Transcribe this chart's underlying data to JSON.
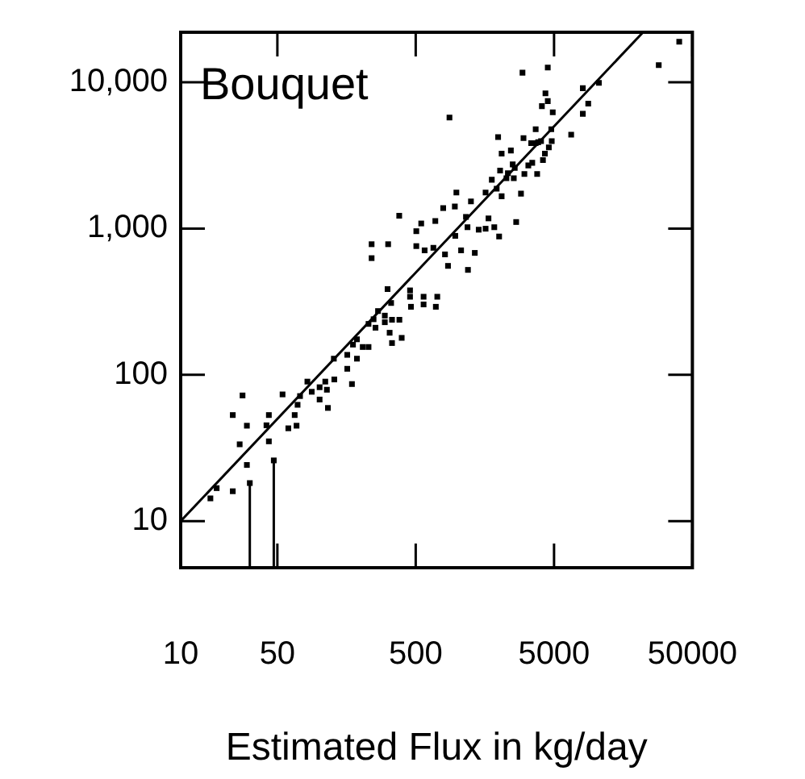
{
  "chart_data": {
    "type": "scatter",
    "xlabel": "Estimated Flux in kg/day",
    "annotations": [
      "Bouquet"
    ],
    "log": "xy",
    "xlim": [
      10,
      50000
    ],
    "ylim": [
      4.8,
      22000
    ],
    "xticks": [
      10,
      50,
      500,
      5000,
      50000
    ],
    "yticks": [
      10,
      100,
      {
        "value": 1000,
        "label": "1,000"
      },
      {
        "value": 10000,
        "label": "10,000"
      }
    ],
    "grid": false,
    "legend": false,
    "marker": "square",
    "series": [
      {
        "color": "#000000",
        "x": [
          16.4,
          18.2,
          23.8,
          23.8,
          28,
          26.7,
          30.1,
          30.1,
          41.7,
          43.4,
          43.4,
          54.5,
          60,
          68.8,
          66.7,
          70,
          72.9,
          82.4,
          88.6,
          101,
          101,
          111,
          114,
          116,
          128,
          129,
          160,
          160,
          173,
          176,
          188,
          188,
          207,
          228,
          228,
          256,
          248,
          267,
          299,
          299,
          324,
          337,
          337,
          381,
          396,
          332,
          313,
          455,
          462,
          455,
          570,
          570,
          716,
          699,
          240,
          240,
          316,
          380,
          505,
          505,
          548,
          580,
          671,
          693,
          790,
          856,
          814,
          959,
          984,
          966,
          1064,
          1154,
          1184,
          1193,
          1254,
          1337,
          1427,
          1600,
          1600,
          1679,
          1774,
          1849,
          1924,
          2004,
          2037,
          1971,
          2090,
          2090,
          2264,
          2318,
          2437,
          2513,
          2558,
          2600,
          2662,
          2884,
          2957,
          3007,
          3052,
          3258,
          3418,
          3479,
          3684,
          3684,
          3775,
          3837,
          4027,
          4157,
          4295,
          4333,
          4085,
          4504,
          4504,
          4585,
          4775,
          4893,
          4812,
          6650,
          8073,
          8073,
          8833,
          10550,
          28560,
          40170,
          877
        ],
        "values": [
          14.3,
          16.8,
          16,
          53.1,
          72.3,
          33.5,
          44.9,
          24.2,
          45.2,
          53.1,
          35.1,
          73.5,
          43.1,
          44.9,
          53.1,
          62.4,
          71.6,
          89.9,
          76.6,
          67.8,
          82.3,
          89.9,
          79.1,
          59.4,
          129,
          93,
          110,
          137,
          86.5,
          161,
          175,
          129,
          155,
          155,
          223,
          210,
          240,
          273,
          229,
          254,
          194,
          165,
          238,
          238,
          179,
          310,
          386,
          378,
          292,
          342,
          342,
          303,
          342,
          292,
          782,
          628,
          782,
          1224,
          960,
          759,
          1084,
          710,
          739,
          1127,
          1381,
          556,
          666,
          1415,
          1763,
          892,
          710,
          1202,
          1022,
          522,
          1535,
          682,
          983,
          998,
          1763,
          1174,
          2158,
          1022,
          1875,
          883,
          2494,
          4224,
          3258,
          1664,
          2208,
          2393,
          3420,
          2748,
          2208,
          2599,
          1109,
          1733,
          11640,
          4158,
          2361,
          2703,
          3837,
          2818,
          3837,
          4779,
          2361,
          3893,
          3960,
          2940,
          3258,
          8418,
          6873,
          7445,
          12620,
          3589,
          4779,
          6240,
          3960,
          4392,
          9120,
          6095,
          7148,
          9909,
          13110,
          18940,
          5742
        ]
      },
      {
        "color": "#000000",
        "x": [
          31.6,
          47.1
        ],
        "values": [
          18.2,
          26
        ],
        "errors": [
          [
            4.8,
            18.2
          ],
          [
            4.8,
            26
          ]
        ]
      },
      {
        "type": "line",
        "color": "#000000",
        "x": [
          10,
          22000
        ],
        "values": [
          10,
          22000
        ],
        "line_style": "solid",
        "marker": "none"
      }
    ]
  }
}
